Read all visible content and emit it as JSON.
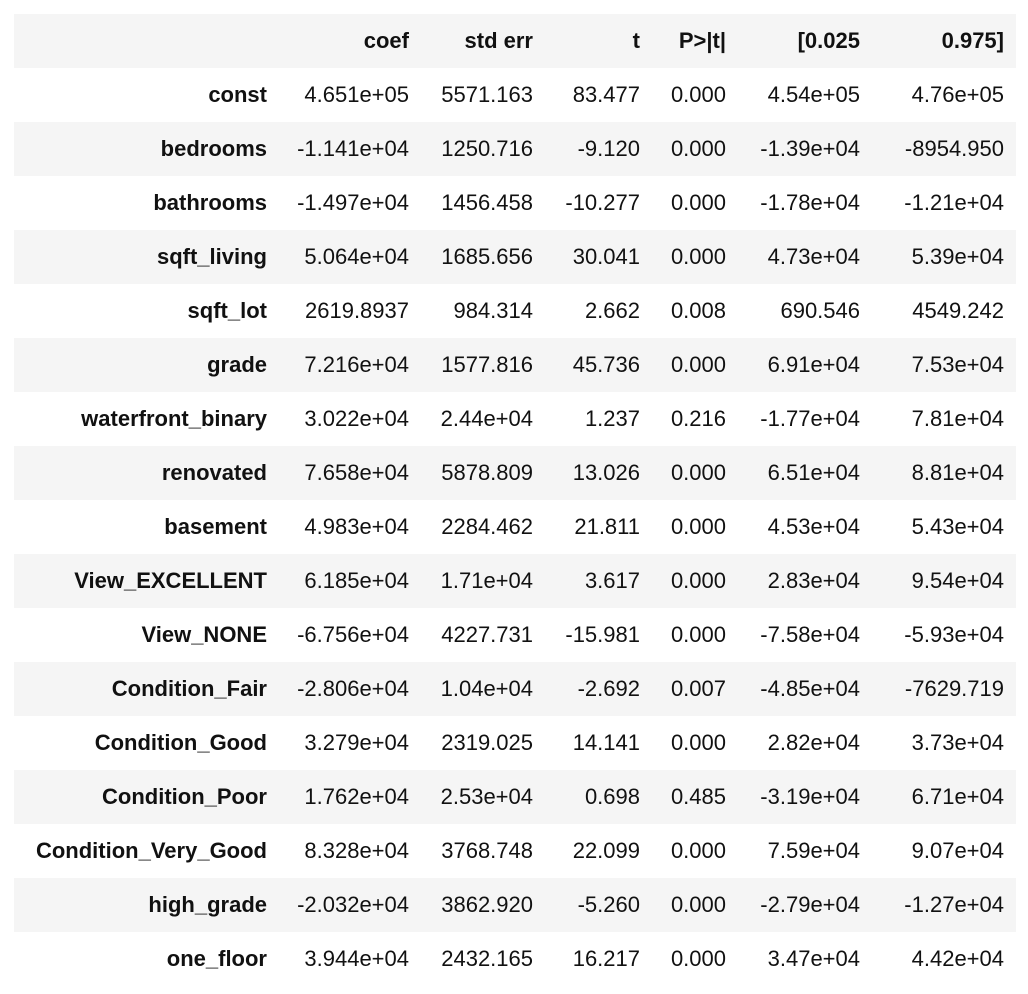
{
  "table": {
    "headers": [
      "",
      "coef",
      "std err",
      "t",
      "P>|t|",
      "[0.025",
      "0.975]"
    ],
    "rows": [
      {
        "label": "const",
        "values": [
          "4.651e+05",
          "5571.163",
          "83.477",
          "0.000",
          "4.54e+05",
          "4.76e+05"
        ]
      },
      {
        "label": "bedrooms",
        "values": [
          "-1.141e+04",
          "1250.716",
          "-9.120",
          "0.000",
          "-1.39e+04",
          "-8954.950"
        ]
      },
      {
        "label": "bathrooms",
        "values": [
          "-1.497e+04",
          "1456.458",
          "-10.277",
          "0.000",
          "-1.78e+04",
          "-1.21e+04"
        ]
      },
      {
        "label": "sqft_living",
        "values": [
          "5.064e+04",
          "1685.656",
          "30.041",
          "0.000",
          "4.73e+04",
          "5.39e+04"
        ]
      },
      {
        "label": "sqft_lot",
        "values": [
          "2619.8937",
          "984.314",
          "2.662",
          "0.008",
          "690.546",
          "4549.242"
        ]
      },
      {
        "label": "grade",
        "values": [
          "7.216e+04",
          "1577.816",
          "45.736",
          "0.000",
          "6.91e+04",
          "7.53e+04"
        ]
      },
      {
        "label": "waterfront_binary",
        "values": [
          "3.022e+04",
          "2.44e+04",
          "1.237",
          "0.216",
          "-1.77e+04",
          "7.81e+04"
        ]
      },
      {
        "label": "renovated",
        "values": [
          "7.658e+04",
          "5878.809",
          "13.026",
          "0.000",
          "6.51e+04",
          "8.81e+04"
        ]
      },
      {
        "label": "basement",
        "values": [
          "4.983e+04",
          "2284.462",
          "21.811",
          "0.000",
          "4.53e+04",
          "5.43e+04"
        ]
      },
      {
        "label": "View_EXCELLENT",
        "values": [
          "6.185e+04",
          "1.71e+04",
          "3.617",
          "0.000",
          "2.83e+04",
          "9.54e+04"
        ]
      },
      {
        "label": "View_NONE",
        "values": [
          "-6.756e+04",
          "4227.731",
          "-15.981",
          "0.000",
          "-7.58e+04",
          "-5.93e+04"
        ]
      },
      {
        "label": "Condition_Fair",
        "values": [
          "-2.806e+04",
          "1.04e+04",
          "-2.692",
          "0.007",
          "-4.85e+04",
          "-7629.719"
        ]
      },
      {
        "label": "Condition_Good",
        "values": [
          "3.279e+04",
          "2319.025",
          "14.141",
          "0.000",
          "2.82e+04",
          "3.73e+04"
        ]
      },
      {
        "label": "Condition_Poor",
        "values": [
          "1.762e+04",
          "2.53e+04",
          "0.698",
          "0.485",
          "-3.19e+04",
          "6.71e+04"
        ]
      },
      {
        "label": "Condition_Very_Good",
        "values": [
          "8.328e+04",
          "3768.748",
          "22.099",
          "0.000",
          "7.59e+04",
          "9.07e+04"
        ]
      },
      {
        "label": "high_grade",
        "values": [
          "-2.032e+04",
          "3862.920",
          "-5.260",
          "0.000",
          "-2.79e+04",
          "-1.27e+04"
        ]
      },
      {
        "label": "one_floor",
        "values": [
          "3.944e+04",
          "2432.165",
          "16.217",
          "0.000",
          "3.47e+04",
          "4.42e+04"
        ]
      }
    ]
  }
}
